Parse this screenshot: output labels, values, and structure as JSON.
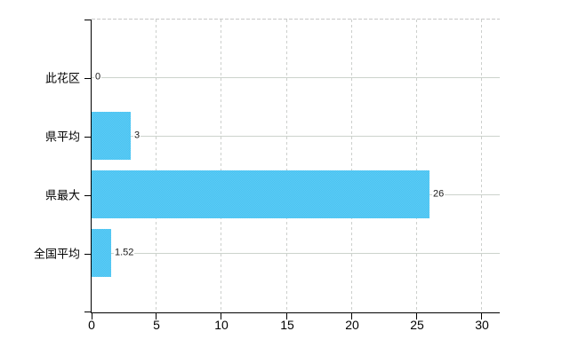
{
  "chart_data": {
    "type": "bar",
    "orientation": "horizontal",
    "title": "",
    "xlabel": "",
    "ylabel": "",
    "categories": [
      "此花区",
      "県平均",
      "県最大",
      "全国平均"
    ],
    "values": [
      0,
      3,
      26,
      1.52
    ],
    "value_labels": [
      "0",
      "3",
      "26",
      "1.52"
    ],
    "x_ticks": [
      0,
      5,
      10,
      15,
      20,
      25,
      30
    ],
    "xlim": [
      0,
      31.4
    ],
    "grid": "on",
    "gridline_style": {
      "horizontal": "solid",
      "vertical": "dashed",
      "plot_top_border": "dashed"
    },
    "legend": "none"
  },
  "colors": {
    "bar": "#46c3f2",
    "grid_horizontal": "#ccd3cc",
    "grid_vertical": "#cccfcc",
    "plot_border_dash": "#c8c8c8",
    "axis": "#000000",
    "background": "#ffffff",
    "text": "#000000"
  }
}
